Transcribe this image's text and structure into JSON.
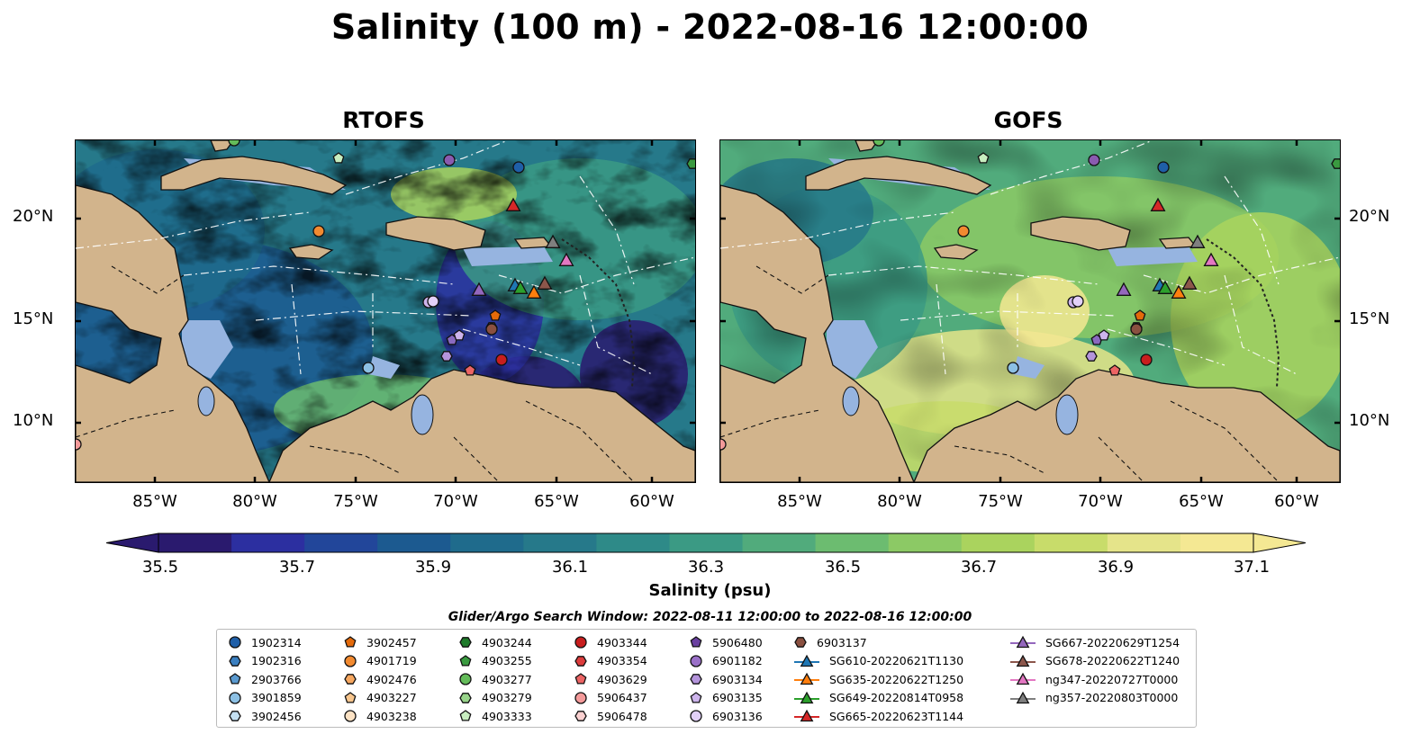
{
  "title": "Salinity (100 m) - 2022-08-16 12:00:00",
  "panels": [
    {
      "title": "RTOFS"
    },
    {
      "title": "GOFS"
    }
  ],
  "lat_labels": [
    "20°N",
    "15°N",
    "10°N"
  ],
  "lon_labels": [
    "85°W",
    "80°W",
    "75°W",
    "70°W",
    "65°W",
    "60°W"
  ],
  "colorbar": {
    "label": "Salinity (psu)",
    "ticks": [
      "35.5",
      "35.7",
      "35.9",
      "36.1",
      "36.3",
      "36.5",
      "36.7",
      "36.9",
      "37.1"
    ],
    "colors": [
      "#2a1a6e",
      "#2c2fa0",
      "#22469a",
      "#1c5a90",
      "#1f6b8c",
      "#26798a",
      "#2e8a88",
      "#3b9a84",
      "#51ab7c",
      "#6cbc70",
      "#8cc965",
      "#aad35e",
      "#c8dc6a",
      "#e5e48a",
      "#f4e893"
    ]
  },
  "search_window": "Glider/Argo Search Window: 2022-08-11 12:00:00 to 2022-08-16 12:00:00",
  "legend": [
    {
      "label": "1902314",
      "marker": "circle",
      "color": "#1f5fa8"
    },
    {
      "label": "1902316",
      "marker": "hexagon",
      "color": "#3a7fc0"
    },
    {
      "label": "2903766",
      "marker": "pentagon",
      "color": "#5a9ad0"
    },
    {
      "label": "3901859",
      "marker": "circle",
      "color": "#8cc0e4"
    },
    {
      "label": "3902456",
      "marker": "hexagon",
      "color": "#c4e0f2"
    },
    {
      "label": "3902457",
      "marker": "pentagon",
      "color": "#e46a0a"
    },
    {
      "label": "4901719",
      "marker": "circle",
      "color": "#f28a30"
    },
    {
      "label": "4902476",
      "marker": "hexagon",
      "color": "#f6a760"
    },
    {
      "label": "4903227",
      "marker": "pentagon",
      "color": "#f8c68e"
    },
    {
      "label": "4903238",
      "marker": "circle",
      "color": "#fce2c4"
    },
    {
      "label": "4903244",
      "marker": "hexagon",
      "color": "#1e7a2a"
    },
    {
      "label": "4903255",
      "marker": "pentagon",
      "color": "#3a9a40"
    },
    {
      "label": "4903277",
      "marker": "circle",
      "color": "#64bc5a"
    },
    {
      "label": "4903279",
      "marker": "hexagon",
      "color": "#98d48a"
    },
    {
      "label": "4903333",
      "marker": "pentagon",
      "color": "#c8eec0"
    },
    {
      "label": "4903344",
      "marker": "circle",
      "color": "#c81e1e"
    },
    {
      "label": "4903354",
      "marker": "hexagon",
      "color": "#dc3c3c"
    },
    {
      "label": "4903629",
      "marker": "pentagon",
      "color": "#ec6464"
    },
    {
      "label": "5906437",
      "marker": "circle",
      "color": "#f49a9a"
    },
    {
      "label": "5906478",
      "marker": "hexagon",
      "color": "#fad0d0"
    },
    {
      "label": "5906480",
      "marker": "pentagon",
      "color": "#6a40a0"
    },
    {
      "label": "6901182",
      "marker": "circle",
      "color": "#9a70c8"
    },
    {
      "label": "6903134",
      "marker": "hexagon",
      "color": "#b494dc"
    },
    {
      "label": "6903135",
      "marker": "pentagon",
      "color": "#cdb4ec"
    },
    {
      "label": "6903136",
      "marker": "circle",
      "color": "#e2d0f8"
    },
    {
      "label": "6903137",
      "marker": "hexagon",
      "color": "#8a5040"
    },
    {
      "label": "SG610-20220621T1130",
      "marker": "triangle",
      "color": "#1f77b4"
    },
    {
      "label": "SG635-20220622T1250",
      "marker": "triangle",
      "color": "#ff7f0e"
    },
    {
      "label": "SG649-20220814T0958",
      "marker": "triangle",
      "color": "#2ca02c"
    },
    {
      "label": "SG665-20220623T1144",
      "marker": "triangle",
      "color": "#d62728"
    },
    {
      "label": "SG667-20220629T1254",
      "marker": "triangle",
      "color": "#9467bd"
    },
    {
      "label": "SG678-20220622T1240",
      "marker": "triangle",
      "color": "#8c564b"
    },
    {
      "label": "ng347-20220727T0000",
      "marker": "triangle",
      "color": "#e377c2"
    },
    {
      "label": "ng357-20220803T0000",
      "marker": "triangle",
      "color": "#7f7f7f"
    }
  ]
}
